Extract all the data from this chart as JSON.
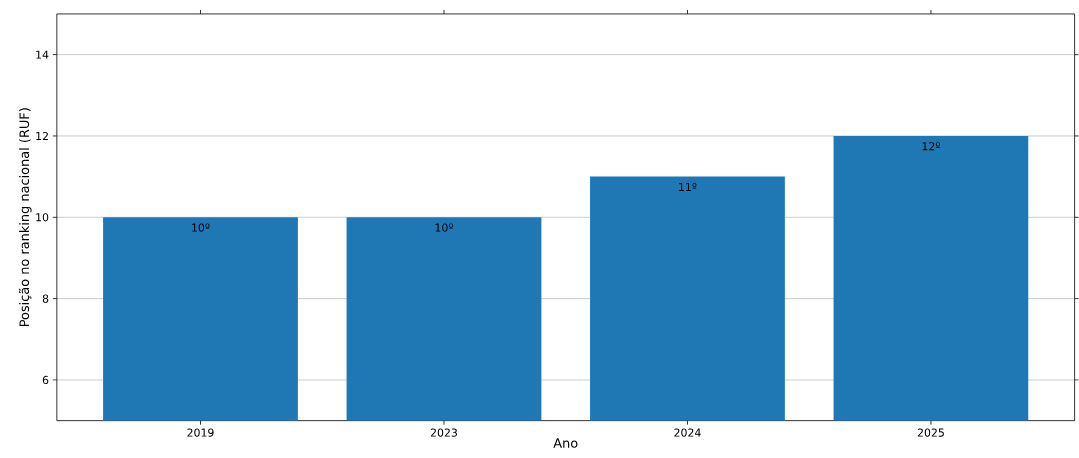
{
  "chart_data": {
    "type": "bar",
    "xlabel": "Ano",
    "ylabel": "Posição no ranking nacional (RUF)",
    "categories": [
      "2019",
      "2023",
      "2024",
      "2025"
    ],
    "values": [
      10,
      10,
      11,
      12
    ],
    "value_labels": [
      "10º",
      "10º",
      "11º",
      "12º"
    ],
    "color": "#1f77b4",
    "ylim": [
      5,
      15
    ],
    "yticks": [
      6,
      8,
      10,
      12,
      14
    ],
    "grid": "y"
  }
}
